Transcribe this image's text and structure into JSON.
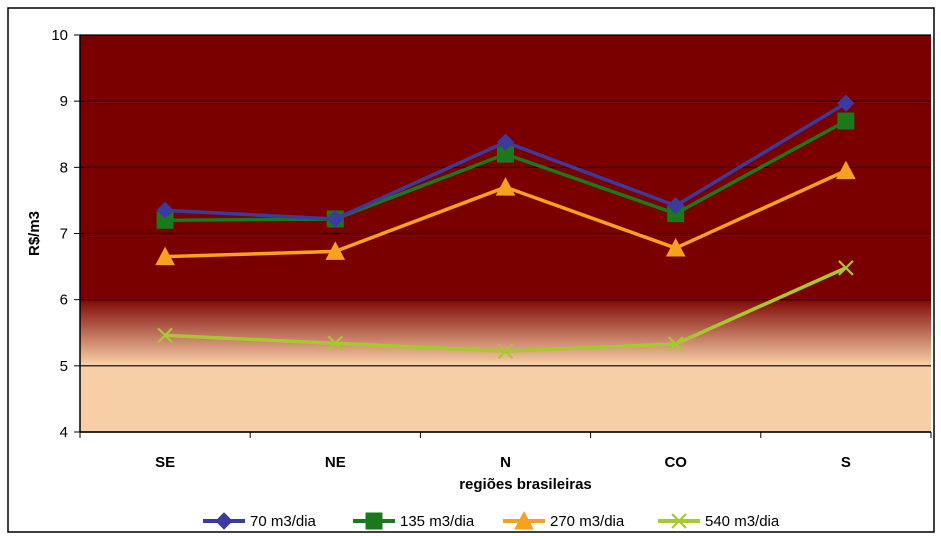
{
  "chart_data": {
    "type": "line",
    "title": "",
    "xlabel": "regiões brasileiras",
    "ylabel": "R$/m3",
    "categories": [
      "SE",
      "NE",
      "N",
      "CO",
      "S"
    ],
    "ylim": [
      4,
      10
    ],
    "yticks": [
      4,
      5,
      6,
      7,
      8,
      9,
      10
    ],
    "grid": true,
    "legend_position": "bottom",
    "series": [
      {
        "name": "70 m3/dia",
        "values": [
          7.35,
          7.22,
          8.38,
          7.42,
          8.97
        ],
        "color": "#3b3b9e",
        "marker": "diamond"
      },
      {
        "name": "135 m3/dia",
        "values": [
          7.2,
          7.22,
          8.2,
          7.3,
          8.7
        ],
        "color": "#1a7a1a",
        "marker": "square"
      },
      {
        "name": "270 m3/dia",
        "values": [
          6.65,
          6.73,
          7.7,
          6.78,
          7.95
        ],
        "color": "#f7a121",
        "marker": "triangle"
      },
      {
        "name": "540 m3/dia",
        "values": [
          5.46,
          5.34,
          5.22,
          5.33,
          6.48
        ],
        "color": "#a8c832",
        "marker": "cross"
      }
    ],
    "background": {
      "upper_color": "#7a0000",
      "lower_color": "#f7cfa6"
    }
  }
}
